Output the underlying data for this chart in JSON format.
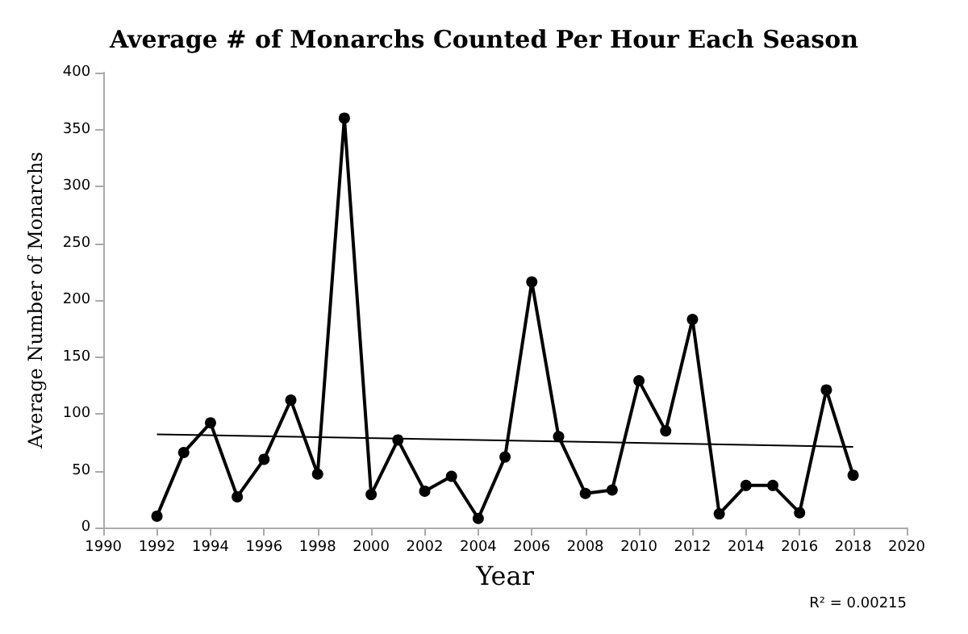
{
  "chart_data": {
    "type": "line",
    "title": "Average # of Monarchs Counted Per Hour Each Season",
    "xlabel": "Year",
    "ylabel": "Average Number of Monarchs",
    "x": [
      1992,
      1993,
      1994,
      1995,
      1996,
      1997,
      1998,
      1999,
      2000,
      2001,
      2002,
      2003,
      2004,
      2005,
      2006,
      2007,
      2008,
      2009,
      2010,
      2011,
      2012,
      2013,
      2014,
      2015,
      2016,
      2017,
      2018
    ],
    "series": [
      {
        "color": "#000000",
        "values": [
          10,
          66,
          92,
          27,
          60,
          112,
          47,
          360,
          29,
          77,
          32,
          45,
          8,
          62,
          216,
          80,
          30,
          33,
          129,
          85,
          183,
          12,
          37,
          37,
          13,
          121,
          46
        ]
      },
      {
        "type": "line",
        "color": "#000000",
        "marker": "none",
        "x": [
          1992,
          2018
        ],
        "values": [
          82,
          71
        ]
      }
    ],
    "xlim": [
      1990,
      2020
    ],
    "xticks": [
      1990,
      1992,
      1994,
      1996,
      1998,
      2000,
      2002,
      2004,
      2006,
      2008,
      2010,
      2012,
      2014,
      2016,
      2018,
      2020
    ],
    "ylim": [
      0,
      400
    ],
    "yticks": [
      0,
      50,
      100,
      150,
      200,
      250,
      300,
      350,
      400
    ],
    "grid": false,
    "marker": "circle",
    "line_style": "solid",
    "annotations": [
      "R² = 0.00215"
    ]
  }
}
